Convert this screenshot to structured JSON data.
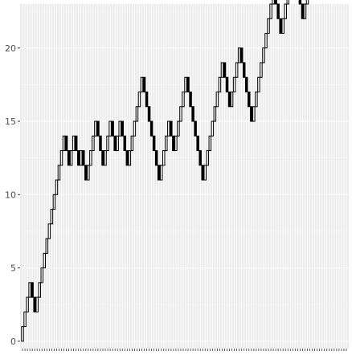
{
  "chart_data": {
    "type": "candlestick-waterfall",
    "title": "",
    "xlabel": "",
    "ylabel": "",
    "ylim": [
      -0.5,
      23
    ],
    "y_ticks": [
      0,
      5,
      10,
      15,
      20
    ],
    "x_tick_labels": "none",
    "grid": true,
    "legend": "none",
    "colors": {
      "panel": "#ebebeb",
      "grid_major": "#ffffff",
      "grid_minor": "#f5f5f5",
      "up_fill": "#ffffff",
      "down_fill": "#000000",
      "stroke": "#000000",
      "tick_text": "#4d4d4d",
      "tick_mark": "#333333"
    },
    "step_changes": [
      1,
      1,
      1,
      1,
      -1,
      -1,
      1,
      1,
      1,
      1,
      1,
      1,
      1,
      1,
      1,
      1,
      1,
      1,
      -1,
      -1,
      1,
      1,
      -1,
      -1,
      1,
      -1,
      -1,
      1,
      1,
      1,
      1,
      -1,
      -1,
      -1,
      1,
      1,
      1,
      -1,
      -1,
      1,
      1,
      -1,
      -1,
      -1,
      1,
      1,
      1,
      1,
      1,
      1,
      -1,
      -1,
      -1,
      -1,
      -1,
      -1,
      -1,
      1,
      1,
      1,
      1,
      -1,
      -1,
      1,
      1,
      1,
      1,
      1,
      -1,
      -1,
      -1,
      -1,
      -1,
      -1,
      -1,
      1,
      1,
      1,
      1,
      1,
      1,
      1,
      1,
      -1,
      -1,
      -1,
      1,
      1,
      1,
      1,
      -1,
      -1,
      -1,
      -1,
      -1,
      1,
      1,
      1,
      1,
      1,
      1,
      1,
      1,
      1,
      -1,
      -1,
      -1,
      1,
      1,
      1,
      1,
      1,
      -1,
      -1,
      -1,
      -1,
      1,
      1,
      1,
      1,
      1,
      1,
      1,
      1,
      -1,
      -1,
      1,
      1,
      1,
      1,
      1,
      -1,
      -1,
      -1
    ]
  }
}
